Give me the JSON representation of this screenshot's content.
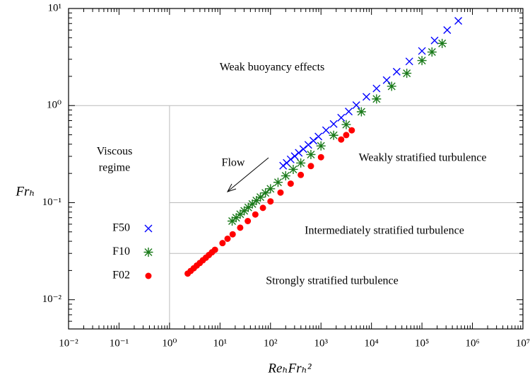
{
  "chart_data": {
    "type": "scatter",
    "x_label": "ReₕFrₕ²",
    "y_label": "Frₕ",
    "log_x": true,
    "log_y": true,
    "xlim": [
      0.01,
      10000000
    ],
    "ylim": [
      0.005,
      10
    ],
    "xticks": [
      {
        "value": 0.01,
        "label": "10⁻²"
      },
      {
        "value": 0.1,
        "label": "10⁻¹"
      },
      {
        "value": 1,
        "label": "10⁰"
      },
      {
        "value": 10,
        "label": "10¹"
      },
      {
        "value": 100,
        "label": "10²"
      },
      {
        "value": 1000,
        "label": "10³"
      },
      {
        "value": 10000,
        "label": "10⁴"
      },
      {
        "value": 100000,
        "label": "10⁵"
      },
      {
        "value": 1000000,
        "label": "10⁶"
      },
      {
        "value": 10000000,
        "label": "10⁷"
      }
    ],
    "yticks": [
      {
        "value": 0.01,
        "label": "10⁻²"
      },
      {
        "value": 0.1,
        "label": "10⁻¹"
      },
      {
        "value": 1,
        "label": "10⁰"
      },
      {
        "value": 10,
        "label": "10¹"
      }
    ],
    "reference_lines": {
      "y": [
        1,
        0.1,
        0.03
      ],
      "x": [
        1
      ]
    },
    "annotations": [
      "Weak buoyancy effects",
      "Viscous",
      "regime",
      "Flow",
      "Weakly stratified turbulence",
      "Intermediately stratified turbulence",
      "Strongly stratified turbulence"
    ],
    "series": [
      {
        "name": "F50",
        "color": "#0000ff",
        "marker": "x",
        "x": [
          178,
          209,
          251,
          302,
          363,
          447,
          562,
          708,
          891,
          1260,
          1780,
          2510,
          3550,
          5010,
          7940,
          12600,
          20000,
          31600,
          56200,
          100000,
          178000,
          316000,
          525000
        ],
        "values": [
          0.24,
          0.257,
          0.279,
          0.301,
          0.326,
          0.356,
          0.394,
          0.435,
          0.48,
          0.557,
          0.646,
          0.75,
          0.869,
          1.01,
          1.23,
          1.5,
          1.83,
          2.23,
          2.85,
          3.65,
          4.68,
          6.0,
          7.45
        ]
      },
      {
        "name": "F10",
        "color": "#1a7a1a",
        "marker": "asterisk",
        "x": [
          17.4,
          20.9,
          25.1,
          30.2,
          36.3,
          43.7,
          52.5,
          63.1,
          79.4,
          100,
          141,
          200,
          282,
          398,
          631,
          1000,
          1780,
          3160,
          6310,
          12600,
          25100,
          50100,
          100000,
          158000,
          251000
        ],
        "values": [
          0.0646,
          0.07,
          0.0759,
          0.0824,
          0.0893,
          0.0968,
          0.105,
          0.114,
          0.126,
          0.139,
          0.162,
          0.189,
          0.22,
          0.256,
          0.313,
          0.384,
          0.494,
          0.637,
          0.863,
          1.17,
          1.58,
          2.15,
          2.91,
          3.56,
          4.37
        ]
      },
      {
        "name": "F02",
        "color": "#ff0000",
        "marker": "circle",
        "x": [
          2.29,
          2.63,
          3.02,
          3.47,
          3.98,
          4.57,
          5.25,
          6.03,
          6.92,
          7.94,
          11.2,
          14.1,
          17.8,
          25.1,
          35.5,
          50.1,
          70.8,
          100,
          158,
          251,
          398,
          631,
          1000,
          2510,
          3160,
          4070
        ],
        "values": [
          0.0186,
          0.0198,
          0.0211,
          0.0225,
          0.0239,
          0.0255,
          0.0271,
          0.0289,
          0.0308,
          0.0327,
          0.0383,
          0.0425,
          0.0472,
          0.0552,
          0.0646,
          0.0755,
          0.0883,
          0.103,
          0.127,
          0.157,
          0.193,
          0.238,
          0.294,
          0.447,
          0.497,
          0.556
        ]
      }
    ]
  }
}
